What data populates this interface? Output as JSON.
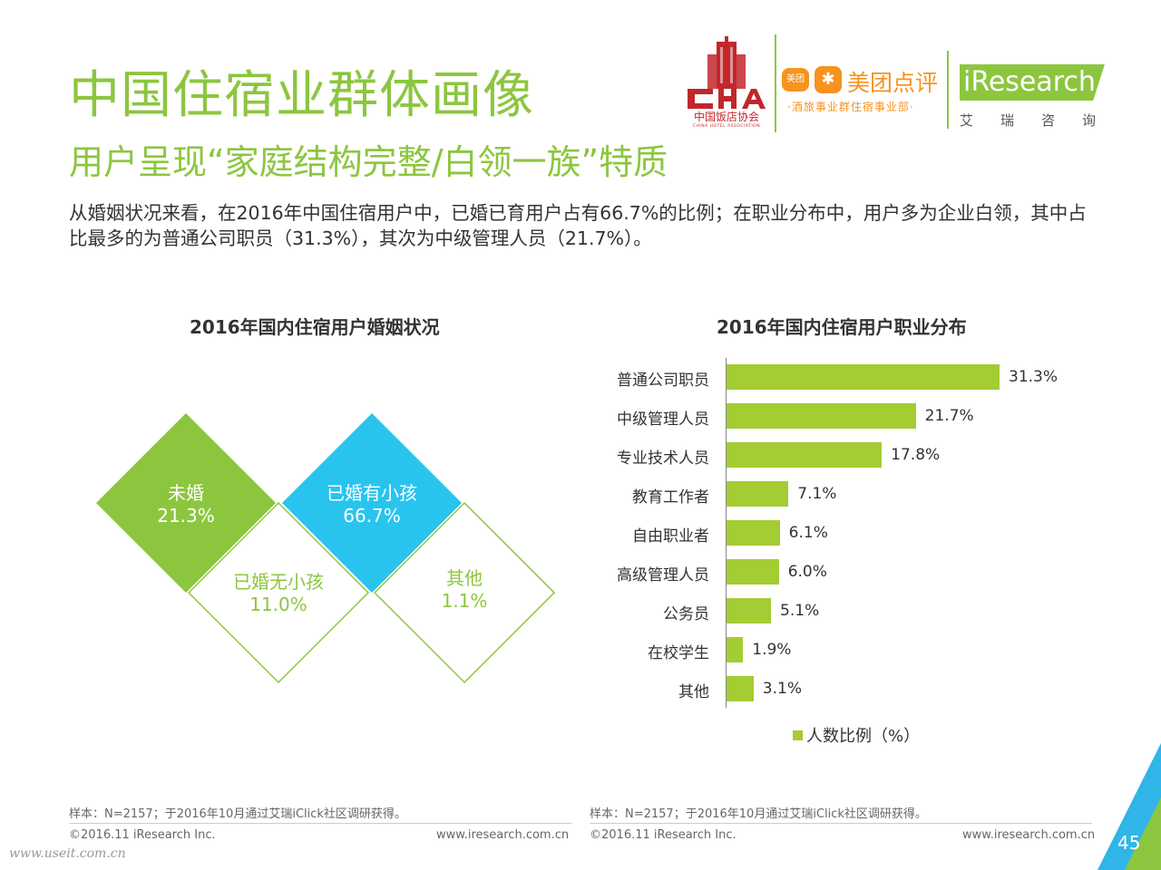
{
  "header": {
    "title": "中国住宿业群体画像",
    "subtitle": "用户呈现“家庭结构完整/白领一族”特质",
    "intro": "从婚姻状况来看，在2016年中国住宿用户中，已婚已育用户占有66.7%的比例；在职业分布中，用户多为企业白领，其中占比最多的为普通公司职员（31.3%），其次为中级管理人员（21.7%）。"
  },
  "logos": {
    "cha_cn": "中国饭店协会",
    "cha_en": "CHINA HOTEL ASSOCIATION",
    "meituan_icon1": "美团",
    "meituan_name": "美团点评",
    "meituan_sub": "·酒旅事业群住宿事业部·",
    "iresearch": "iResearch",
    "iresearch_cn": "艾瑞咨询"
  },
  "colors": {
    "accent_green": "#8cc63f",
    "bar_green": "#a4cc33",
    "blue": "#29c4ee",
    "corner_blue": "#2fb5e8"
  },
  "chart_data": [
    {
      "type": "pie",
      "title": "2016年国内住宿用户婚姻状况",
      "categories": [
        "未婚",
        "已婚有小孩",
        "已婚无小孩",
        "其他"
      ],
      "values": [
        21.3,
        66.7,
        11.0,
        1.1
      ],
      "value_labels": [
        "21.3%",
        "66.7%",
        "11.0%",
        "1.1%"
      ]
    },
    {
      "type": "bar",
      "orientation": "horizontal",
      "title": "2016年国内住宿用户职业分布",
      "categories": [
        "普通公司职员",
        "中级管理人员",
        "专业技术人员",
        "教育工作者",
        "自由职业者",
        "高级管理人员",
        "公务员",
        "在校学生",
        "其他"
      ],
      "values": [
        31.3,
        21.7,
        17.8,
        7.1,
        6.1,
        6.0,
        5.1,
        1.9,
        3.1
      ],
      "value_labels": [
        "31.3%",
        "21.7%",
        "17.8%",
        "7.1%",
        "6.1%",
        "6.0%",
        "5.1%",
        "1.9%",
        "3.1%"
      ],
      "legend": "人数比例（%）"
    }
  ],
  "footer": {
    "note": "样本：N=2157；于2016年10月通过艾瑞iClick社区调研获得。",
    "copyright": "©2016.11 iResearch Inc.",
    "url": "www.iresearch.com.cn",
    "page": "45",
    "watermark": "www.useit.com.cn"
  }
}
